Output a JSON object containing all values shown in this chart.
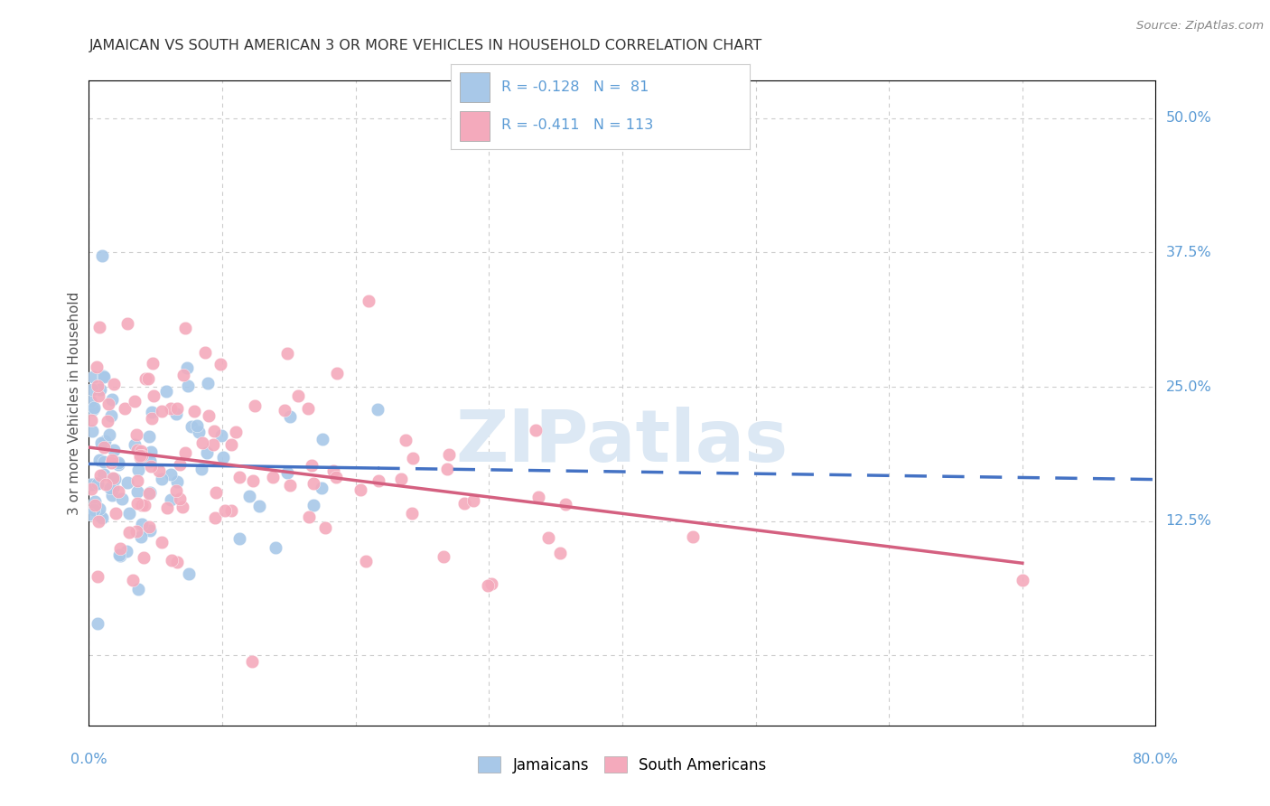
{
  "title": "JAMAICAN VS SOUTH AMERICAN 3 OR MORE VEHICLES IN HOUSEHOLD CORRELATION CHART",
  "source": "Source: ZipAtlas.com",
  "ylabel": "3 or more Vehicles in Household",
  "ytick_values": [
    0.0,
    0.125,
    0.25,
    0.375,
    0.5
  ],
  "ytick_labels": [
    "",
    "12.5%",
    "25.0%",
    "37.5%",
    "50.0%"
  ],
  "xmin": 0.0,
  "xmax": 0.8,
  "ymin": -0.065,
  "ymax": 0.535,
  "blue_R": -0.128,
  "blue_N": 81,
  "pink_R": -0.411,
  "pink_N": 113,
  "blue_color": "#a8c8e8",
  "pink_color": "#f4aabc",
  "blue_line_color": "#4472c4",
  "pink_line_color": "#d46080",
  "title_color": "#333333",
  "axis_color": "#5b9bd5",
  "grid_color": "#cccccc",
  "watermark_color": "#dce8f4",
  "background_color": "#ffffff",
  "legend_label_blue": "Jamaicans",
  "legend_label_pink": "South Americans",
  "blue_seed": 42,
  "pink_seed": 77
}
